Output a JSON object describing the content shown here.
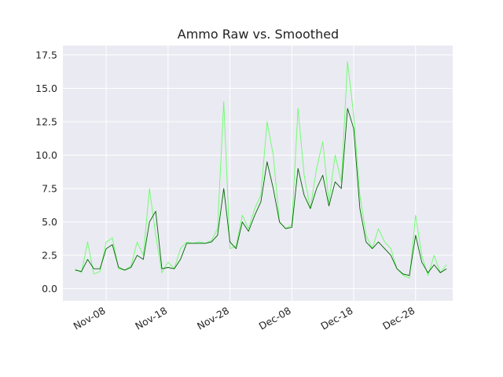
{
  "chart_data": {
    "type": "line",
    "title": "Ammo Raw vs. Smoothed",
    "xlabel": "",
    "ylabel": "",
    "x_range": [
      "2021-11-01",
      "2022-01-03"
    ],
    "ylim": [
      -0.9,
      18.2
    ],
    "y_ticks": [
      "0.0",
      "2.5",
      "5.0",
      "7.5",
      "10.0",
      "12.5",
      "15.0",
      "17.5"
    ],
    "x_ticks": [
      {
        "date": "2021-11-08",
        "label": "Nov-08"
      },
      {
        "date": "2021-11-18",
        "label": "Nov-18"
      },
      {
        "date": "2021-11-28",
        "label": "Nov-28"
      },
      {
        "date": "2021-12-08",
        "label": "Dec-08"
      },
      {
        "date": "2021-12-18",
        "label": "Dec-18"
      },
      {
        "date": "2021-12-28",
        "label": "Dec-28"
      }
    ],
    "grid": true,
    "background": "#eaeaf2",
    "series": [
      {
        "role": "raw",
        "color": "#66ff66",
        "x": [
          "2021-11-03",
          "2021-11-04",
          "2021-11-05",
          "2021-11-06",
          "2021-11-07",
          "2021-11-08",
          "2021-11-09",
          "2021-11-10",
          "2021-11-11",
          "2021-11-12",
          "2021-11-13",
          "2021-11-14",
          "2021-11-15",
          "2021-11-16",
          "2021-11-17",
          "2021-11-18",
          "2021-11-19",
          "2021-11-20",
          "2021-11-21",
          "2021-11-22",
          "2021-11-23",
          "2021-11-24",
          "2021-11-25",
          "2021-11-26",
          "2021-11-27",
          "2021-11-28",
          "2021-11-29",
          "2021-11-30",
          "2021-12-01",
          "2021-12-02",
          "2021-12-03",
          "2021-12-04",
          "2021-12-05",
          "2021-12-06",
          "2021-12-07",
          "2021-12-08",
          "2021-12-09",
          "2021-12-10",
          "2021-12-11",
          "2021-12-12",
          "2021-12-13",
          "2021-12-14",
          "2021-12-15",
          "2021-12-16",
          "2021-12-17",
          "2021-12-18",
          "2021-12-19",
          "2021-12-20",
          "2021-12-21",
          "2021-12-22",
          "2021-12-23",
          "2021-12-24",
          "2021-12-25",
          "2021-12-26",
          "2021-12-27",
          "2021-12-28",
          "2021-12-29",
          "2021-12-30",
          "2021-12-31",
          "2022-01-01",
          "2022-01-02"
        ],
        "y": [
          1.5,
          1.2,
          3.5,
          1.1,
          1.3,
          3.5,
          3.8,
          1.5,
          1.4,
          1.7,
          3.5,
          2.5,
          7.5,
          4.0,
          1.2,
          2.0,
          1.5,
          3.0,
          3.5,
          3.4,
          3.5,
          3.4,
          3.6,
          4.5,
          14.0,
          3.0,
          3.2,
          5.5,
          4.5,
          6.0,
          7.0,
          12.5,
          10.0,
          5.0,
          4.5,
          4.8,
          13.5,
          8.5,
          6.0,
          9.0,
          11.0,
          6.5,
          10.0,
          8.0,
          17.0,
          13.0,
          7.0,
          4.0,
          3.0,
          4.5,
          3.5,
          3.0,
          1.5,
          1.0,
          0.8,
          5.5,
          2.5,
          1.0,
          2.5,
          1.2,
          1.8
        ]
      },
      {
        "role": "smoothed",
        "color": "#006400",
        "x": [
          "2021-11-03",
          "2021-11-04",
          "2021-11-05",
          "2021-11-06",
          "2021-11-07",
          "2021-11-08",
          "2021-11-09",
          "2021-11-10",
          "2021-11-11",
          "2021-11-12",
          "2021-11-13",
          "2021-11-14",
          "2021-11-15",
          "2021-11-16",
          "2021-11-17",
          "2021-11-18",
          "2021-11-19",
          "2021-11-20",
          "2021-11-21",
          "2021-11-22",
          "2021-11-23",
          "2021-11-24",
          "2021-11-25",
          "2021-11-26",
          "2021-11-27",
          "2021-11-28",
          "2021-11-29",
          "2021-11-30",
          "2021-12-01",
          "2021-12-02",
          "2021-12-03",
          "2021-12-04",
          "2021-12-05",
          "2021-12-06",
          "2021-12-07",
          "2021-12-08",
          "2021-12-09",
          "2021-12-10",
          "2021-12-11",
          "2021-12-12",
          "2021-12-13",
          "2021-12-14",
          "2021-12-15",
          "2021-12-16",
          "2021-12-17",
          "2021-12-18",
          "2021-12-19",
          "2021-12-20",
          "2021-12-21",
          "2021-12-22",
          "2021-12-23",
          "2021-12-24",
          "2021-12-25",
          "2021-12-26",
          "2021-12-27",
          "2021-12-28",
          "2021-12-29",
          "2021-12-30",
          "2021-12-31",
          "2022-01-01",
          "2022-01-02"
        ],
        "y": [
          1.4,
          1.3,
          2.2,
          1.5,
          1.5,
          3.0,
          3.3,
          1.6,
          1.4,
          1.6,
          2.5,
          2.2,
          5.0,
          5.8,
          1.5,
          1.6,
          1.5,
          2.2,
          3.4,
          3.4,
          3.4,
          3.4,
          3.5,
          4.0,
          7.5,
          3.5,
          3.0,
          5.0,
          4.3,
          5.5,
          6.5,
          9.5,
          7.5,
          5.0,
          4.5,
          4.6,
          9.0,
          7.0,
          6.0,
          7.5,
          8.5,
          6.2,
          8.0,
          7.5,
          13.5,
          12.0,
          6.0,
          3.5,
          3.0,
          3.5,
          3.0,
          2.5,
          1.5,
          1.1,
          1.0,
          4.0,
          2.0,
          1.2,
          1.8,
          1.2,
          1.5
        ]
      }
    ]
  }
}
